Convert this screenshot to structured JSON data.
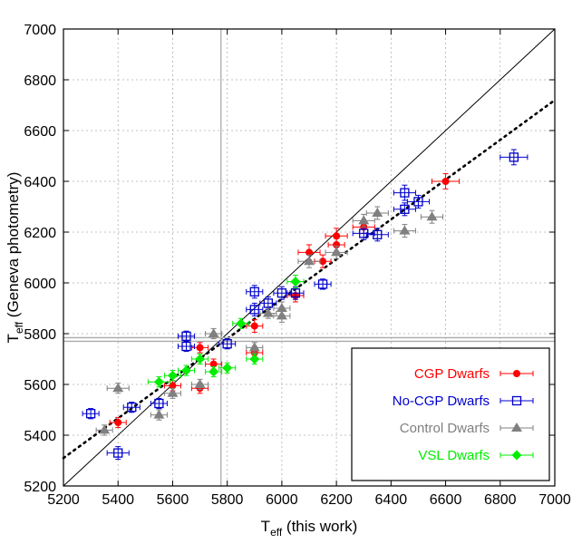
{
  "chart_data": {
    "type": "scatter",
    "xlabel": {
      "main": "T",
      "sub": "eff",
      "rest": " (this work)"
    },
    "ylabel": {
      "main": "T",
      "sub": "eff",
      "rest": " (Geneva photometry)"
    },
    "xlim": [
      5200,
      7000
    ],
    "ylim": [
      5200,
      7000
    ],
    "xticks": [
      5200,
      5400,
      5600,
      5800,
      6000,
      6200,
      6400,
      6600,
      6800,
      7000
    ],
    "yticks": [
      5200,
      5400,
      5600,
      5800,
      6000,
      6200,
      6400,
      6600,
      6800,
      7000
    ],
    "grid": true,
    "legend_position": "bottom-right",
    "reference_lines": {
      "one_to_one": true,
      "dotted_fit": {
        "x1": 5200,
        "y1": 5310,
        "x2": 7000,
        "y2": 6720
      },
      "vertical_x": 5777,
      "horizontal_y": 5777
    },
    "series": [
      {
        "name": "CGP Dwarfs",
        "color": "#ff0000",
        "marker": "circle",
        "points": [
          {
            "x": 5400,
            "y": 5450,
            "ex": 30,
            "ey": 20
          },
          {
            "x": 5600,
            "y": 5595,
            "ex": 30,
            "ey": 20
          },
          {
            "x": 5700,
            "y": 5585,
            "ex": 30,
            "ey": 20
          },
          {
            "x": 5700,
            "y": 5745,
            "ex": 30,
            "ey": 20
          },
          {
            "x": 5750,
            "y": 5680,
            "ex": 30,
            "ey": 20
          },
          {
            "x": 5900,
            "y": 5830,
            "ex": 30,
            "ey": 25
          },
          {
            "x": 5900,
            "y": 5725,
            "ex": 30,
            "ey": 25
          },
          {
            "x": 6050,
            "y": 5950,
            "ex": 30,
            "ey": 25
          },
          {
            "x": 6100,
            "y": 6120,
            "ex": 40,
            "ey": 30
          },
          {
            "x": 6150,
            "y": 6085,
            "ex": 30,
            "ey": 25
          },
          {
            "x": 6200,
            "y": 6150,
            "ex": 30,
            "ey": 25
          },
          {
            "x": 6200,
            "y": 6185,
            "ex": 40,
            "ey": 30
          },
          {
            "x": 6300,
            "y": 6220,
            "ex": 40,
            "ey": 25
          },
          {
            "x": 6600,
            "y": 6400,
            "ex": 50,
            "ey": 30
          }
        ]
      },
      {
        "name": "No-CGP Dwarfs",
        "color": "#0000cc",
        "marker": "square-open",
        "points": [
          {
            "x": 5300,
            "y": 5485,
            "ex": 30,
            "ey": 20
          },
          {
            "x": 5400,
            "y": 5330,
            "ex": 40,
            "ey": 25
          },
          {
            "x": 5450,
            "y": 5510,
            "ex": 30,
            "ey": 20
          },
          {
            "x": 5550,
            "y": 5525,
            "ex": 30,
            "ey": 20
          },
          {
            "x": 5650,
            "y": 5790,
            "ex": 30,
            "ey": 20
          },
          {
            "x": 5650,
            "y": 5750,
            "ex": 30,
            "ey": 20
          },
          {
            "x": 5800,
            "y": 5760,
            "ex": 30,
            "ey": 20
          },
          {
            "x": 5900,
            "y": 5965,
            "ex": 30,
            "ey": 25
          },
          {
            "x": 5900,
            "y": 5895,
            "ex": 30,
            "ey": 25
          },
          {
            "x": 5950,
            "y": 5920,
            "ex": 30,
            "ey": 25
          },
          {
            "x": 6000,
            "y": 5960,
            "ex": 30,
            "ey": 25
          },
          {
            "x": 6050,
            "y": 5960,
            "ex": 30,
            "ey": 25
          },
          {
            "x": 6150,
            "y": 5995,
            "ex": 30,
            "ey": 20
          },
          {
            "x": 6300,
            "y": 6195,
            "ex": 40,
            "ey": 25
          },
          {
            "x": 6350,
            "y": 6190,
            "ex": 40,
            "ey": 25
          },
          {
            "x": 6450,
            "y": 6355,
            "ex": 40,
            "ey": 30
          },
          {
            "x": 6500,
            "y": 6320,
            "ex": 40,
            "ey": 25
          },
          {
            "x": 6450,
            "y": 6290,
            "ex": 40,
            "ey": 25
          },
          {
            "x": 6850,
            "y": 6495,
            "ex": 50,
            "ey": 30
          }
        ]
      },
      {
        "name": "Control Dwarfs",
        "color": "#808080",
        "marker": "triangle",
        "points": [
          {
            "x": 5350,
            "y": 5420,
            "ex": 30,
            "ey": 20
          },
          {
            "x": 5400,
            "y": 5585,
            "ex": 40,
            "ey": 20
          },
          {
            "x": 5550,
            "y": 5480,
            "ex": 30,
            "ey": 20
          },
          {
            "x": 5600,
            "y": 5565,
            "ex": 30,
            "ey": 20
          },
          {
            "x": 5700,
            "y": 5600,
            "ex": 30,
            "ey": 20
          },
          {
            "x": 5750,
            "y": 5800,
            "ex": 30,
            "ey": 20
          },
          {
            "x": 5900,
            "y": 5745,
            "ex": 30,
            "ey": 20
          },
          {
            "x": 5950,
            "y": 5880,
            "ex": 30,
            "ey": 20
          },
          {
            "x": 6000,
            "y": 5870,
            "ex": 30,
            "ey": 25
          },
          {
            "x": 6000,
            "y": 5900,
            "ex": 30,
            "ey": 25
          },
          {
            "x": 6100,
            "y": 6085,
            "ex": 40,
            "ey": 25
          },
          {
            "x": 6200,
            "y": 6120,
            "ex": 40,
            "ey": 25
          },
          {
            "x": 6300,
            "y": 6245,
            "ex": 40,
            "ey": 25
          },
          {
            "x": 6350,
            "y": 6275,
            "ex": 40,
            "ey": 25
          },
          {
            "x": 6450,
            "y": 6205,
            "ex": 40,
            "ey": 25
          },
          {
            "x": 6550,
            "y": 6260,
            "ex": 40,
            "ey": 25
          }
        ]
      },
      {
        "name": "VSL Dwarfs",
        "color": "#00ee00",
        "marker": "diamond",
        "points": [
          {
            "x": 5550,
            "y": 5610,
            "ex": 40,
            "ey": 20
          },
          {
            "x": 5600,
            "y": 5635,
            "ex": 30,
            "ey": 20
          },
          {
            "x": 5650,
            "y": 5655,
            "ex": 30,
            "ey": 20
          },
          {
            "x": 5700,
            "y": 5700,
            "ex": 30,
            "ey": 20
          },
          {
            "x": 5750,
            "y": 5650,
            "ex": 30,
            "ey": 20
          },
          {
            "x": 5800,
            "y": 5665,
            "ex": 30,
            "ey": 20
          },
          {
            "x": 5850,
            "y": 5840,
            "ex": 30,
            "ey": 20
          },
          {
            "x": 5900,
            "y": 5700,
            "ex": 30,
            "ey": 20
          },
          {
            "x": 6050,
            "y": 6005,
            "ex": 30,
            "ey": 25
          }
        ]
      }
    ]
  }
}
